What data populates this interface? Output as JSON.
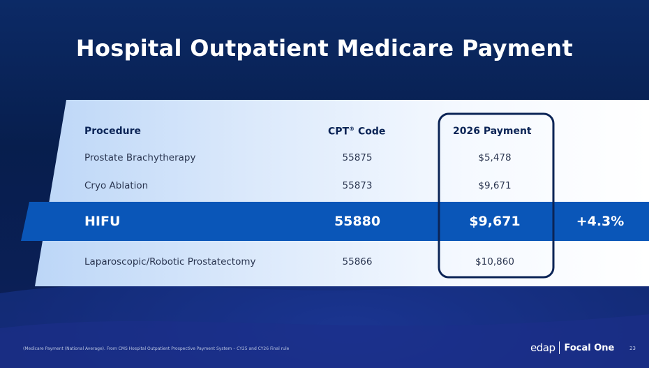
{
  "slide": {
    "title": "Hospital Outpatient Medicare Payment",
    "page_number": "23",
    "footnote": "(Medicare Payment (National Average). From CMS Hospital Outpatient Prospective Payment System – CY25 and CY26 Final rule"
  },
  "table": {
    "headers": {
      "procedure": "Procedure",
      "cpt": "CPT",
      "cpt_sup": "®",
      "cpt_suffix": " Code",
      "payment": "2026 Payment"
    },
    "rows": [
      {
        "procedure": "Prostate  Brachytherapy",
        "code": "55875",
        "payment": "$5,478"
      },
      {
        "procedure": "Cryo Ablation",
        "code": "55873",
        "payment": "$9,671"
      },
      {
        "procedure": "HIFU",
        "code": "55880",
        "payment": "$9,671",
        "change": "+4.3%"
      },
      {
        "procedure": "Laparoscopic/Robotic Prostatectomy",
        "code": "55866",
        "payment": "$10,860"
      }
    ]
  },
  "logo": {
    "primary": "edap",
    "secondary": "Focal One"
  },
  "colors": {
    "background": "#071e4d",
    "panel_light": "#ffffff",
    "panel_tint": "#bcd6f7",
    "highlight_band": "#0a56b8",
    "header_text": "#0b2456",
    "outline": "#0b2456"
  }
}
